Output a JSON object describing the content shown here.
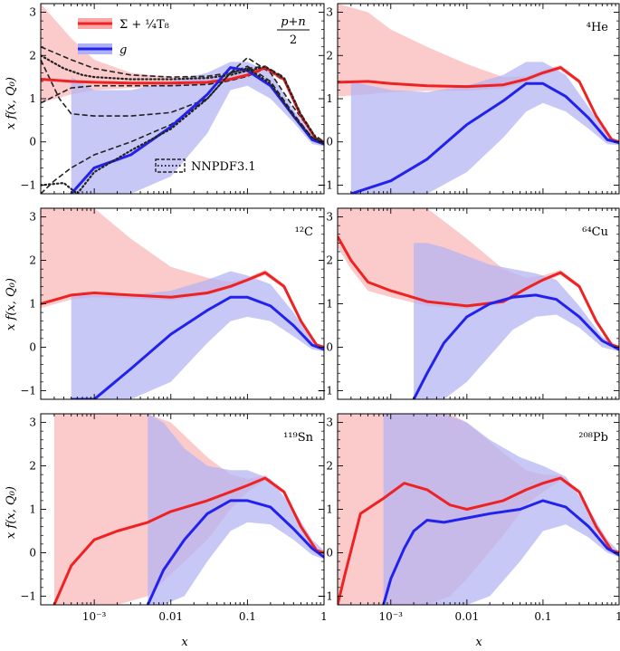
{
  "figure": {
    "ylabel": "x f(x, Q₀)",
    "xlabel": "x",
    "legend": {
      "sigma_label": "Σ + ¼T₈",
      "g_label": "g",
      "nnpdf_label": "NNPDF3.1"
    },
    "colors": {
      "sigma": "#ee2222",
      "g": "#2222ee",
      "sigma_band": "#f8a8a8",
      "g_band": "#b0b0f4",
      "nnpdf": "#222222"
    }
  },
  "chart_data": [
    {
      "type": "line",
      "panel": "p+n/2",
      "label": "(p+n)/2",
      "log_x": true,
      "xlim": [
        0.0002,
        1
      ],
      "ylim": [
        -1.2,
        3.2
      ],
      "xticks": [
        "10⁻³",
        "0.01",
        "0.1",
        "1"
      ],
      "yticks": [
        "−1",
        "0",
        "1",
        "2",
        "3"
      ],
      "series": [
        {
          "name": "Σ + ¼T₈",
          "x": [
            0.0002,
            0.0005,
            0.001,
            0.003,
            0.01,
            0.03,
            0.06,
            0.1,
            0.17,
            0.3,
            0.5,
            0.8,
            1.0
          ],
          "y": [
            1.45,
            1.4,
            1.38,
            1.36,
            1.36,
            1.38,
            1.45,
            1.55,
            1.72,
            1.45,
            0.6,
            0.05,
            0.0
          ],
          "band_lo": [
            0.9,
            1.1,
            1.2,
            1.25,
            1.28,
            1.32,
            1.4,
            1.5,
            1.65,
            1.4,
            0.55,
            0.02,
            -0.03
          ],
          "band_hi": [
            3.2,
            2.4,
            1.9,
            1.6,
            1.5,
            1.48,
            1.52,
            1.62,
            1.78,
            1.5,
            0.65,
            0.08,
            0.03
          ]
        },
        {
          "name": "g",
          "x": [
            0.0005,
            0.001,
            0.003,
            0.01,
            0.03,
            0.06,
            0.1,
            0.2,
            0.4,
            0.7,
            1.0
          ],
          "y": [
            -1.2,
            -0.6,
            -0.3,
            0.35,
            1.1,
            1.72,
            1.65,
            1.3,
            0.6,
            0.05,
            -0.05
          ],
          "band_lo": [
            -1.2,
            -1.2,
            -1.2,
            -0.8,
            0.2,
            1.2,
            1.3,
            1.0,
            0.45,
            -0.05,
            -0.1
          ],
          "band_hi": [
            1.5,
            1.2,
            1.2,
            1.4,
            1.6,
            1.85,
            1.85,
            1.6,
            0.75,
            0.15,
            0.0
          ]
        }
      ]
    },
    {
      "type": "line",
      "panel": "He4",
      "label": "⁴He",
      "log_x": true,
      "xlim": [
        0.0002,
        1
      ],
      "ylim": [
        -1.2,
        3.2
      ],
      "xticks": [
        "10⁻³",
        "0.01",
        "0.1",
        "1"
      ],
      "yticks": [
        "−1",
        "0",
        "1",
        "2",
        "3"
      ],
      "series": [
        {
          "name": "Σ + ¼T₈",
          "x": [
            0.0002,
            0.0005,
            0.001,
            0.003,
            0.01,
            0.03,
            0.06,
            0.1,
            0.17,
            0.3,
            0.5,
            0.8,
            1.0
          ],
          "y": [
            1.38,
            1.4,
            1.35,
            1.3,
            1.28,
            1.32,
            1.45,
            1.6,
            1.72,
            1.4,
            0.6,
            0.05,
            0.0
          ],
          "band_lo": [
            1.05,
            1.1,
            1.15,
            1.18,
            1.18,
            1.24,
            1.38,
            1.54,
            1.66,
            1.35,
            0.55,
            0.02,
            -0.03
          ],
          "band_hi": [
            3.2,
            3.0,
            2.6,
            2.2,
            1.8,
            1.5,
            1.52,
            1.66,
            1.78,
            1.45,
            0.65,
            0.08,
            0.03
          ]
        },
        {
          "name": "g",
          "x": [
            0.0003,
            0.001,
            0.003,
            0.01,
            0.03,
            0.06,
            0.1,
            0.2,
            0.4,
            0.7,
            1.0
          ],
          "y": [
            -1.2,
            -0.9,
            -0.4,
            0.4,
            0.95,
            1.35,
            1.35,
            1.05,
            0.55,
            0.05,
            -0.02
          ],
          "band_lo": [
            -1.2,
            -1.2,
            -1.2,
            -0.7,
            0.1,
            0.7,
            0.9,
            0.7,
            0.3,
            -0.05,
            -0.08
          ],
          "band_hi": [
            1.4,
            1.2,
            1.15,
            1.3,
            1.55,
            1.85,
            1.85,
            1.55,
            0.8,
            0.15,
            0.02
          ]
        }
      ]
    },
    {
      "type": "line",
      "panel": "C12",
      "label": "¹²C",
      "log_x": true,
      "xlim": [
        0.0002,
        1
      ],
      "ylim": [
        -1.2,
        3.2
      ],
      "xticks": [
        "10⁻³",
        "0.01",
        "0.1",
        "1"
      ],
      "yticks": [
        "−1",
        "0",
        "1",
        "2",
        "3"
      ],
      "series": [
        {
          "name": "Σ + ¼T₈",
          "x": [
            0.0002,
            0.0005,
            0.001,
            0.003,
            0.01,
            0.03,
            0.06,
            0.1,
            0.17,
            0.3,
            0.5,
            0.8,
            1.0
          ],
          "y": [
            1.0,
            1.2,
            1.25,
            1.2,
            1.15,
            1.25,
            1.4,
            1.55,
            1.72,
            1.4,
            0.6,
            0.05,
            0.0
          ],
          "band_lo": [
            0.9,
            1.1,
            1.15,
            1.12,
            1.08,
            1.2,
            1.35,
            1.5,
            1.66,
            1.35,
            0.55,
            0.02,
            -0.03
          ],
          "band_hi": [
            3.2,
            3.2,
            3.2,
            2.5,
            1.85,
            1.6,
            1.5,
            1.6,
            1.78,
            1.45,
            0.65,
            0.08,
            0.03
          ]
        },
        {
          "name": "g",
          "x": [
            0.0005,
            0.001,
            0.003,
            0.01,
            0.03,
            0.06,
            0.1,
            0.2,
            0.4,
            0.7,
            1.0
          ],
          "y": [
            -1.4,
            -1.2,
            -0.5,
            0.3,
            0.85,
            1.15,
            1.15,
            0.95,
            0.5,
            0.05,
            -0.05
          ],
          "band_lo": [
            -1.2,
            -1.2,
            -1.2,
            -0.8,
            0.1,
            0.6,
            0.7,
            0.6,
            0.25,
            -0.05,
            -0.1
          ],
          "band_hi": [
            1.2,
            1.2,
            1.2,
            1.3,
            1.55,
            1.75,
            1.65,
            1.45,
            0.8,
            0.15,
            0.02
          ]
        }
      ]
    },
    {
      "type": "line",
      "panel": "Cu64",
      "label": "⁶⁴Cu",
      "log_x": true,
      "xlim": [
        0.0002,
        1
      ],
      "ylim": [
        -1.2,
        3.2
      ],
      "xticks": [
        "10⁻³",
        "0.01",
        "0.1",
        "1"
      ],
      "yticks": [
        "−1",
        "0",
        "1",
        "2",
        "3"
      ],
      "series": [
        {
          "name": "Σ + ¼T₈",
          "x": [
            0.0002,
            0.0003,
            0.0005,
            0.001,
            0.003,
            0.01,
            0.03,
            0.06,
            0.1,
            0.17,
            0.3,
            0.5,
            0.8,
            1.0
          ],
          "y": [
            2.55,
            2.0,
            1.5,
            1.3,
            1.05,
            0.95,
            1.05,
            1.35,
            1.55,
            1.72,
            1.4,
            0.6,
            0.05,
            0.0
          ],
          "band_lo": [
            2.3,
            1.8,
            1.3,
            1.15,
            0.95,
            0.88,
            1.0,
            1.3,
            1.5,
            1.66,
            1.35,
            0.55,
            0.02,
            -0.03
          ],
          "band_hi": [
            3.2,
            3.2,
            3.2,
            3.2,
            3.2,
            2.5,
            1.8,
            1.6,
            1.65,
            1.78,
            1.45,
            0.65,
            0.08,
            0.03
          ]
        },
        {
          "name": "g",
          "x": [
            0.002,
            0.003,
            0.005,
            0.01,
            0.02,
            0.04,
            0.08,
            0.15,
            0.3,
            0.6,
            1.0
          ],
          "y": [
            -1.2,
            -0.6,
            0.1,
            0.7,
            1.0,
            1.15,
            1.2,
            1.1,
            0.7,
            0.15,
            -0.05
          ],
          "band_lo": [
            -1.2,
            -1.2,
            -1.2,
            -0.8,
            -0.2,
            0.4,
            0.7,
            0.75,
            0.45,
            0.0,
            -0.1
          ],
          "band_hi": [
            2.4,
            2.4,
            2.3,
            2.1,
            1.9,
            1.8,
            1.7,
            1.55,
            0.95,
            0.25,
            0.02
          ]
        }
      ]
    },
    {
      "type": "line",
      "panel": "Sn119",
      "label": "¹¹⁹Sn",
      "log_x": true,
      "xlim": [
        0.0002,
        1
      ],
      "ylim": [
        -1.2,
        3.2
      ],
      "xticks": [
        "10⁻³",
        "0.01",
        "0.1",
        "1"
      ],
      "yticks": [
        "−1",
        "0",
        "1",
        "2",
        "3"
      ],
      "series": [
        {
          "name": "Σ + ¼T₈",
          "x": [
            0.0003,
            0.0005,
            0.001,
            0.002,
            0.005,
            0.01,
            0.03,
            0.06,
            0.1,
            0.17,
            0.3,
            0.5,
            0.8,
            1.0
          ],
          "y": [
            -1.2,
            -0.3,
            0.3,
            0.5,
            0.7,
            0.95,
            1.2,
            1.4,
            1.55,
            1.72,
            1.4,
            0.6,
            0.05,
            0.0
          ],
          "band_lo": [
            -1.2,
            -1.2,
            -1.2,
            -1.2,
            -1.0,
            -0.5,
            0.3,
            1.0,
            1.4,
            1.66,
            1.35,
            0.55,
            0.02,
            -0.03
          ],
          "band_hi": [
            3.2,
            3.2,
            3.2,
            3.2,
            3.2,
            3.0,
            2.2,
            1.8,
            1.7,
            1.78,
            1.45,
            0.65,
            0.08,
            0.03
          ]
        },
        {
          "name": "g",
          "x": [
            0.005,
            0.008,
            0.015,
            0.03,
            0.06,
            0.1,
            0.2,
            0.4,
            0.7,
            1.0
          ],
          "y": [
            -1.2,
            -0.4,
            0.3,
            0.9,
            1.2,
            1.2,
            1.05,
            0.55,
            0.1,
            -0.1
          ],
          "band_lo": [
            -1.2,
            -1.2,
            -1.0,
            -0.2,
            0.5,
            0.7,
            0.65,
            0.3,
            -0.05,
            -0.15
          ],
          "band_hi": [
            3.2,
            3.0,
            2.4,
            2.0,
            1.9,
            1.9,
            1.7,
            1.0,
            0.3,
            0.05
          ]
        }
      ]
    },
    {
      "type": "line",
      "panel": "Pb208",
      "label": "²⁰⁸Pb",
      "log_x": true,
      "xlim": [
        0.0002,
        1
      ],
      "ylim": [
        -1.2,
        3.2
      ],
      "xticks": [
        "10⁻³",
        "0.01",
        "0.1",
        "1"
      ],
      "yticks": [
        "−1",
        "0",
        "1",
        "2",
        "3"
      ],
      "series": [
        {
          "name": "Σ + ¼T₈",
          "x": [
            0.0002,
            0.00025,
            0.0004,
            0.0008,
            0.0015,
            0.003,
            0.006,
            0.01,
            0.03,
            0.06,
            0.1,
            0.17,
            0.3,
            0.5,
            0.8,
            1.0
          ],
          "y": [
            -1.2,
            -0.5,
            0.9,
            1.25,
            1.6,
            1.45,
            1.1,
            1.0,
            1.2,
            1.45,
            1.6,
            1.72,
            1.4,
            0.6,
            0.05,
            0.0
          ],
          "band_lo": [
            -1.2,
            -1.2,
            -1.2,
            -1.2,
            -1.2,
            -1.2,
            -1.0,
            -0.6,
            0.4,
            1.1,
            1.4,
            1.66,
            1.35,
            0.55,
            0.02,
            -0.03
          ],
          "band_hi": [
            3.2,
            3.2,
            3.2,
            3.2,
            3.2,
            3.2,
            3.2,
            3.0,
            2.3,
            1.9,
            1.8,
            1.78,
            1.45,
            0.65,
            0.08,
            0.03
          ]
        },
        {
          "name": "g",
          "x": [
            0.0008,
            0.001,
            0.0015,
            0.002,
            0.003,
            0.005,
            0.01,
            0.02,
            0.05,
            0.1,
            0.2,
            0.4,
            0.7,
            1.0
          ],
          "y": [
            -1.2,
            -0.6,
            0.1,
            0.5,
            0.75,
            0.7,
            0.8,
            0.9,
            1.0,
            1.2,
            1.05,
            0.6,
            0.1,
            -0.05
          ],
          "band_lo": [
            -1.2,
            -1.2,
            -1.2,
            -1.2,
            -1.2,
            -1.2,
            -1.2,
            -1.0,
            -0.2,
            0.5,
            0.65,
            0.35,
            0.0,
            -0.1
          ],
          "band_hi": [
            3.2,
            3.2,
            3.2,
            3.2,
            3.2,
            3.2,
            3.0,
            2.6,
            2.2,
            2.0,
            1.75,
            1.0,
            0.3,
            0.03
          ]
        }
      ]
    }
  ],
  "nnpdf_curves": [
    {
      "x": [
        0.0002,
        0.0005,
        0.001,
        0.003,
        0.01,
        0.03,
        0.06,
        0.1,
        0.17,
        0.3,
        0.5,
        0.8,
        1.0
      ],
      "y": [
        2.2,
        1.9,
        1.7,
        1.55,
        1.5,
        1.52,
        1.6,
        1.7,
        1.75,
        1.5,
        0.65,
        0.08,
        0.0
      ]
    },
    {
      "x": [
        0.0002,
        0.0005,
        0.001,
        0.003,
        0.01,
        0.03,
        0.06,
        0.1,
        0.17,
        0.3,
        0.5,
        0.8,
        1.0
      ],
      "y": [
        0.9,
        1.25,
        1.3,
        1.3,
        1.3,
        1.33,
        1.42,
        1.52,
        1.7,
        1.42,
        0.58,
        0.03,
        -0.02
      ]
    },
    {
      "x": [
        0.0002,
        0.00035,
        0.0005,
        0.001,
        0.003,
        0.01,
        0.03,
        0.06,
        0.1,
        0.2,
        0.4,
        0.7,
        1.0
      ],
      "y": [
        1.9,
        1.0,
        0.65,
        0.6,
        0.6,
        0.68,
        1.0,
        1.6,
        1.95,
        1.6,
        0.8,
        0.2,
        0.0
      ]
    },
    {
      "x": [
        0.0002,
        0.0003,
        0.0005,
        0.001,
        0.003,
        0.01,
        0.03,
        0.06,
        0.1,
        0.2,
        0.4,
        0.7,
        1.0
      ],
      "y": [
        -1.2,
        -0.9,
        -0.6,
        -0.3,
        0.0,
        0.4,
        1.0,
        1.6,
        1.75,
        1.4,
        0.65,
        0.1,
        -0.05
      ]
    }
  ],
  "nnpdf_dotted": [
    {
      "x": [
        0.0002,
        0.0004,
        0.0007,
        0.001,
        0.003,
        0.01,
        0.03,
        0.06,
        0.1,
        0.17,
        0.3,
        0.5,
        0.8,
        1.0
      ],
      "y": [
        2.0,
        1.7,
        1.55,
        1.5,
        1.45,
        1.45,
        1.48,
        1.55,
        1.65,
        1.74,
        1.47,
        0.62,
        0.06,
        0.0
      ]
    },
    {
      "x": [
        0.0002,
        0.0004,
        0.0006,
        0.001,
        0.003,
        0.01,
        0.03,
        0.06,
        0.1,
        0.2,
        0.4,
        0.7,
        1.0
      ],
      "y": [
        -1.0,
        -0.95,
        -1.2,
        -0.7,
        -0.2,
        0.3,
        1.0,
        1.6,
        1.7,
        1.35,
        0.6,
        0.1,
        -0.05
      ]
    }
  ]
}
